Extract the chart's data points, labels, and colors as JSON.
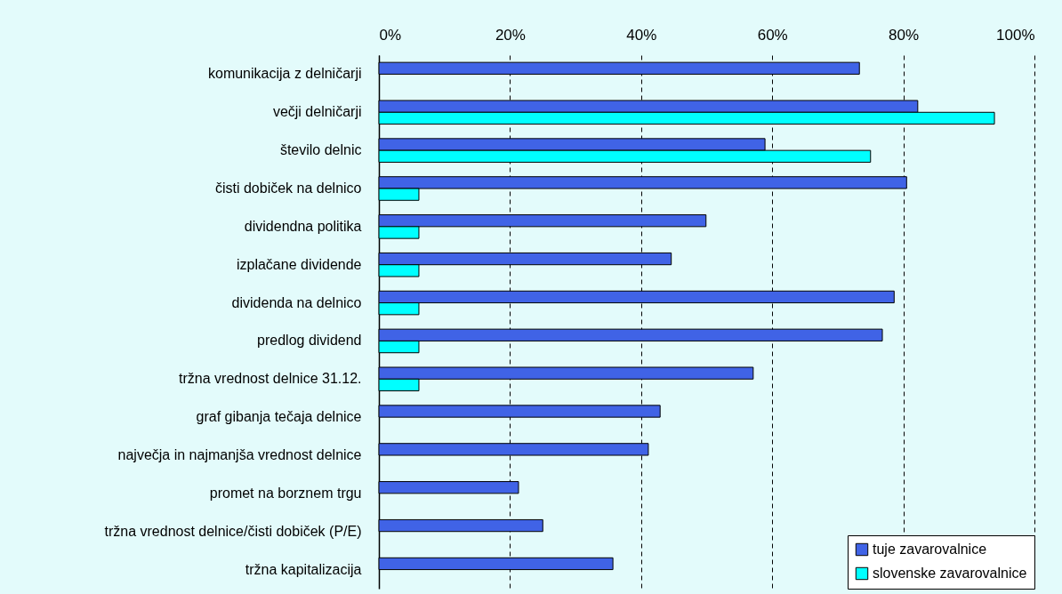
{
  "chart_data": {
    "type": "bar",
    "orientation": "horizontal",
    "categories": [
      "komunikacija z delničarji",
      "večji delničarji",
      "število delnic",
      "čisti dobiček na delnico",
      "dividendna politika",
      "izplačane dividende",
      "dividenda na delnico",
      "predlog dividend",
      "tržna vrednost delnice 31.12.",
      "graf gibanja tečaja delnice",
      "največja in najmanjša vrednost delnice",
      "promet na borznem trgu ",
      "tržna vrednost delnice/čisti dobiček (P/E)",
      "tržna kapitalizacija"
    ],
    "series": [
      {
        "name": "tuje zavarovalnice",
        "color": "#4063e6",
        "values": [
          73.3,
          82.2,
          58.9,
          80.5,
          49.9,
          44.6,
          78.6,
          76.8,
          57.1,
          42.9,
          41.1,
          21.3,
          25.0,
          35.7
        ]
      },
      {
        "name": "slovenske zavarovalnice",
        "color": "#00ffff",
        "values": [
          null,
          93.9,
          75.0,
          6.1,
          6.1,
          6.1,
          6.1,
          6.1,
          6.1,
          null,
          null,
          null,
          null,
          null
        ]
      }
    ],
    "xlim": [
      0,
      100
    ],
    "xticks": [
      {
        "value": 0,
        "label": "0%"
      },
      {
        "value": 20,
        "label": "20%"
      },
      {
        "value": 40,
        "label": "40%"
      },
      {
        "value": 60,
        "label": "60%"
      },
      {
        "value": 80,
        "label": "80%"
      },
      {
        "value": 100,
        "label": "100%"
      }
    ],
    "grid": "x",
    "legend": "bottom right"
  }
}
